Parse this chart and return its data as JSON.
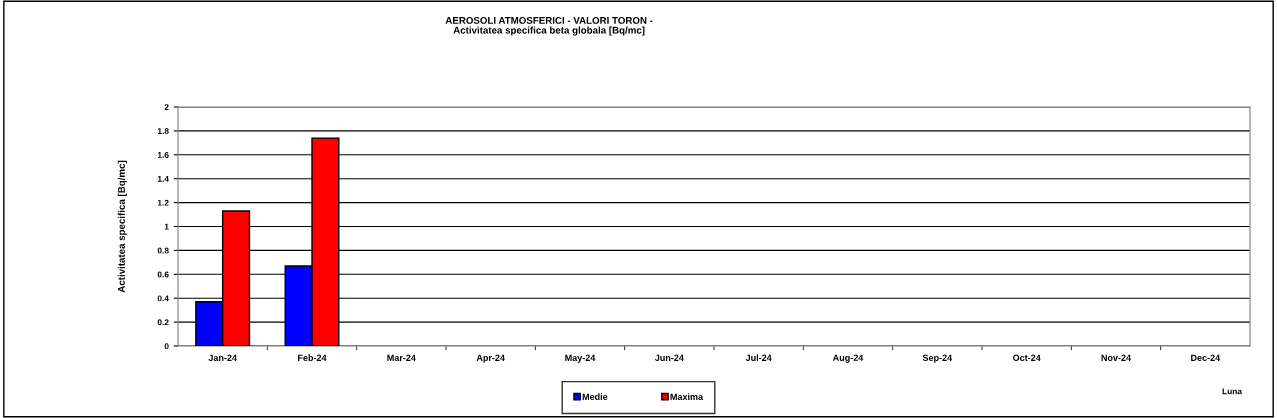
{
  "chart_data": {
    "type": "bar",
    "title": "AEROSOLI ATMOSFERICI - VALORI TORON -\nActivitatea specifica beta globala [Bq/mc]",
    "xlabel": "Luna",
    "ylabel": "Activitatea specifica [Bq/mc]",
    "categories": [
      "Jan-24",
      "Feb-24",
      "Mar-24",
      "Apr-24",
      "May-24",
      "Jun-24",
      "Jul-24",
      "Aug-24",
      "Sep-24",
      "Oct-24",
      "Nov-24",
      "Dec-24"
    ],
    "series": [
      {
        "name": "Medie",
        "color": "#0000ff",
        "values": [
          0.37,
          0.67,
          null,
          null,
          null,
          null,
          null,
          null,
          null,
          null,
          null,
          null
        ]
      },
      {
        "name": "Maxima",
        "color": "#ff0000",
        "values": [
          1.13,
          1.74,
          null,
          null,
          null,
          null,
          null,
          null,
          null,
          null,
          null,
          null
        ]
      }
    ],
    "ylim": [
      0,
      2
    ],
    "yticks": [
      0,
      0.2,
      0.4,
      0.6,
      0.8,
      1,
      1.2,
      1.4,
      1.6,
      1.8,
      2
    ],
    "grid": "y",
    "legend": "bottom"
  }
}
